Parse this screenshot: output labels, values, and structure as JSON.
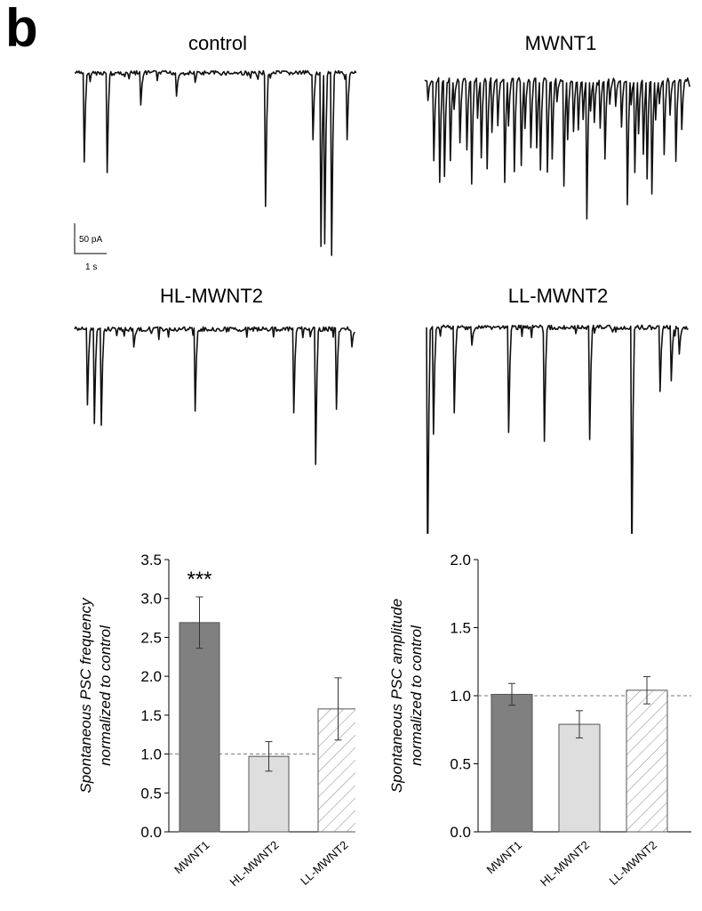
{
  "panel_label": "b",
  "traces": [
    {
      "title": "control"
    },
    {
      "title": "MWNT1"
    },
    {
      "title": "HL-MWNT2"
    },
    {
      "title": "LL-MWNT2"
    }
  ],
  "scale_bar": {
    "y_label": "50 pA",
    "x_label": "1 s"
  },
  "colors": {
    "mwnt1": "#808080",
    "hl_mwnt2": "#dedede",
    "ll_mwnt2": "#ffffff",
    "trace": "#111111"
  },
  "chart_data": [
    {
      "type": "bar",
      "categories": [
        "MWNT1",
        "HL-MWNT2",
        "LL-MWNT2"
      ],
      "values": [
        2.69,
        0.97,
        1.58
      ],
      "errors": [
        0.33,
        0.19,
        0.4
      ],
      "ylabel": [
        "Spontaneous PSC frequency",
        "normalized to control"
      ],
      "ylim": [
        0,
        3.5
      ],
      "yticks": [
        "0.0",
        "0.5",
        "1.0",
        "1.5",
        "2.0",
        "2.5",
        "3.0",
        "3.5"
      ],
      "reference_line": 1.0,
      "annotations": [
        {
          "category": "MWNT1",
          "text": "***"
        }
      ]
    },
    {
      "type": "bar",
      "categories": [
        "MWNT1",
        "HL-MWNT2",
        "LL-MWNT2"
      ],
      "values": [
        1.01,
        0.79,
        1.04
      ],
      "errors": [
        0.08,
        0.1,
        0.1
      ],
      "ylabel": [
        "Spontaneous PSC amplitude",
        "normalized to control"
      ],
      "ylim": [
        0,
        2.0
      ],
      "yticks": [
        "0.0",
        "0.5",
        "1.0",
        "1.5",
        "2.0"
      ],
      "reference_line": 1.0,
      "annotations": []
    }
  ]
}
